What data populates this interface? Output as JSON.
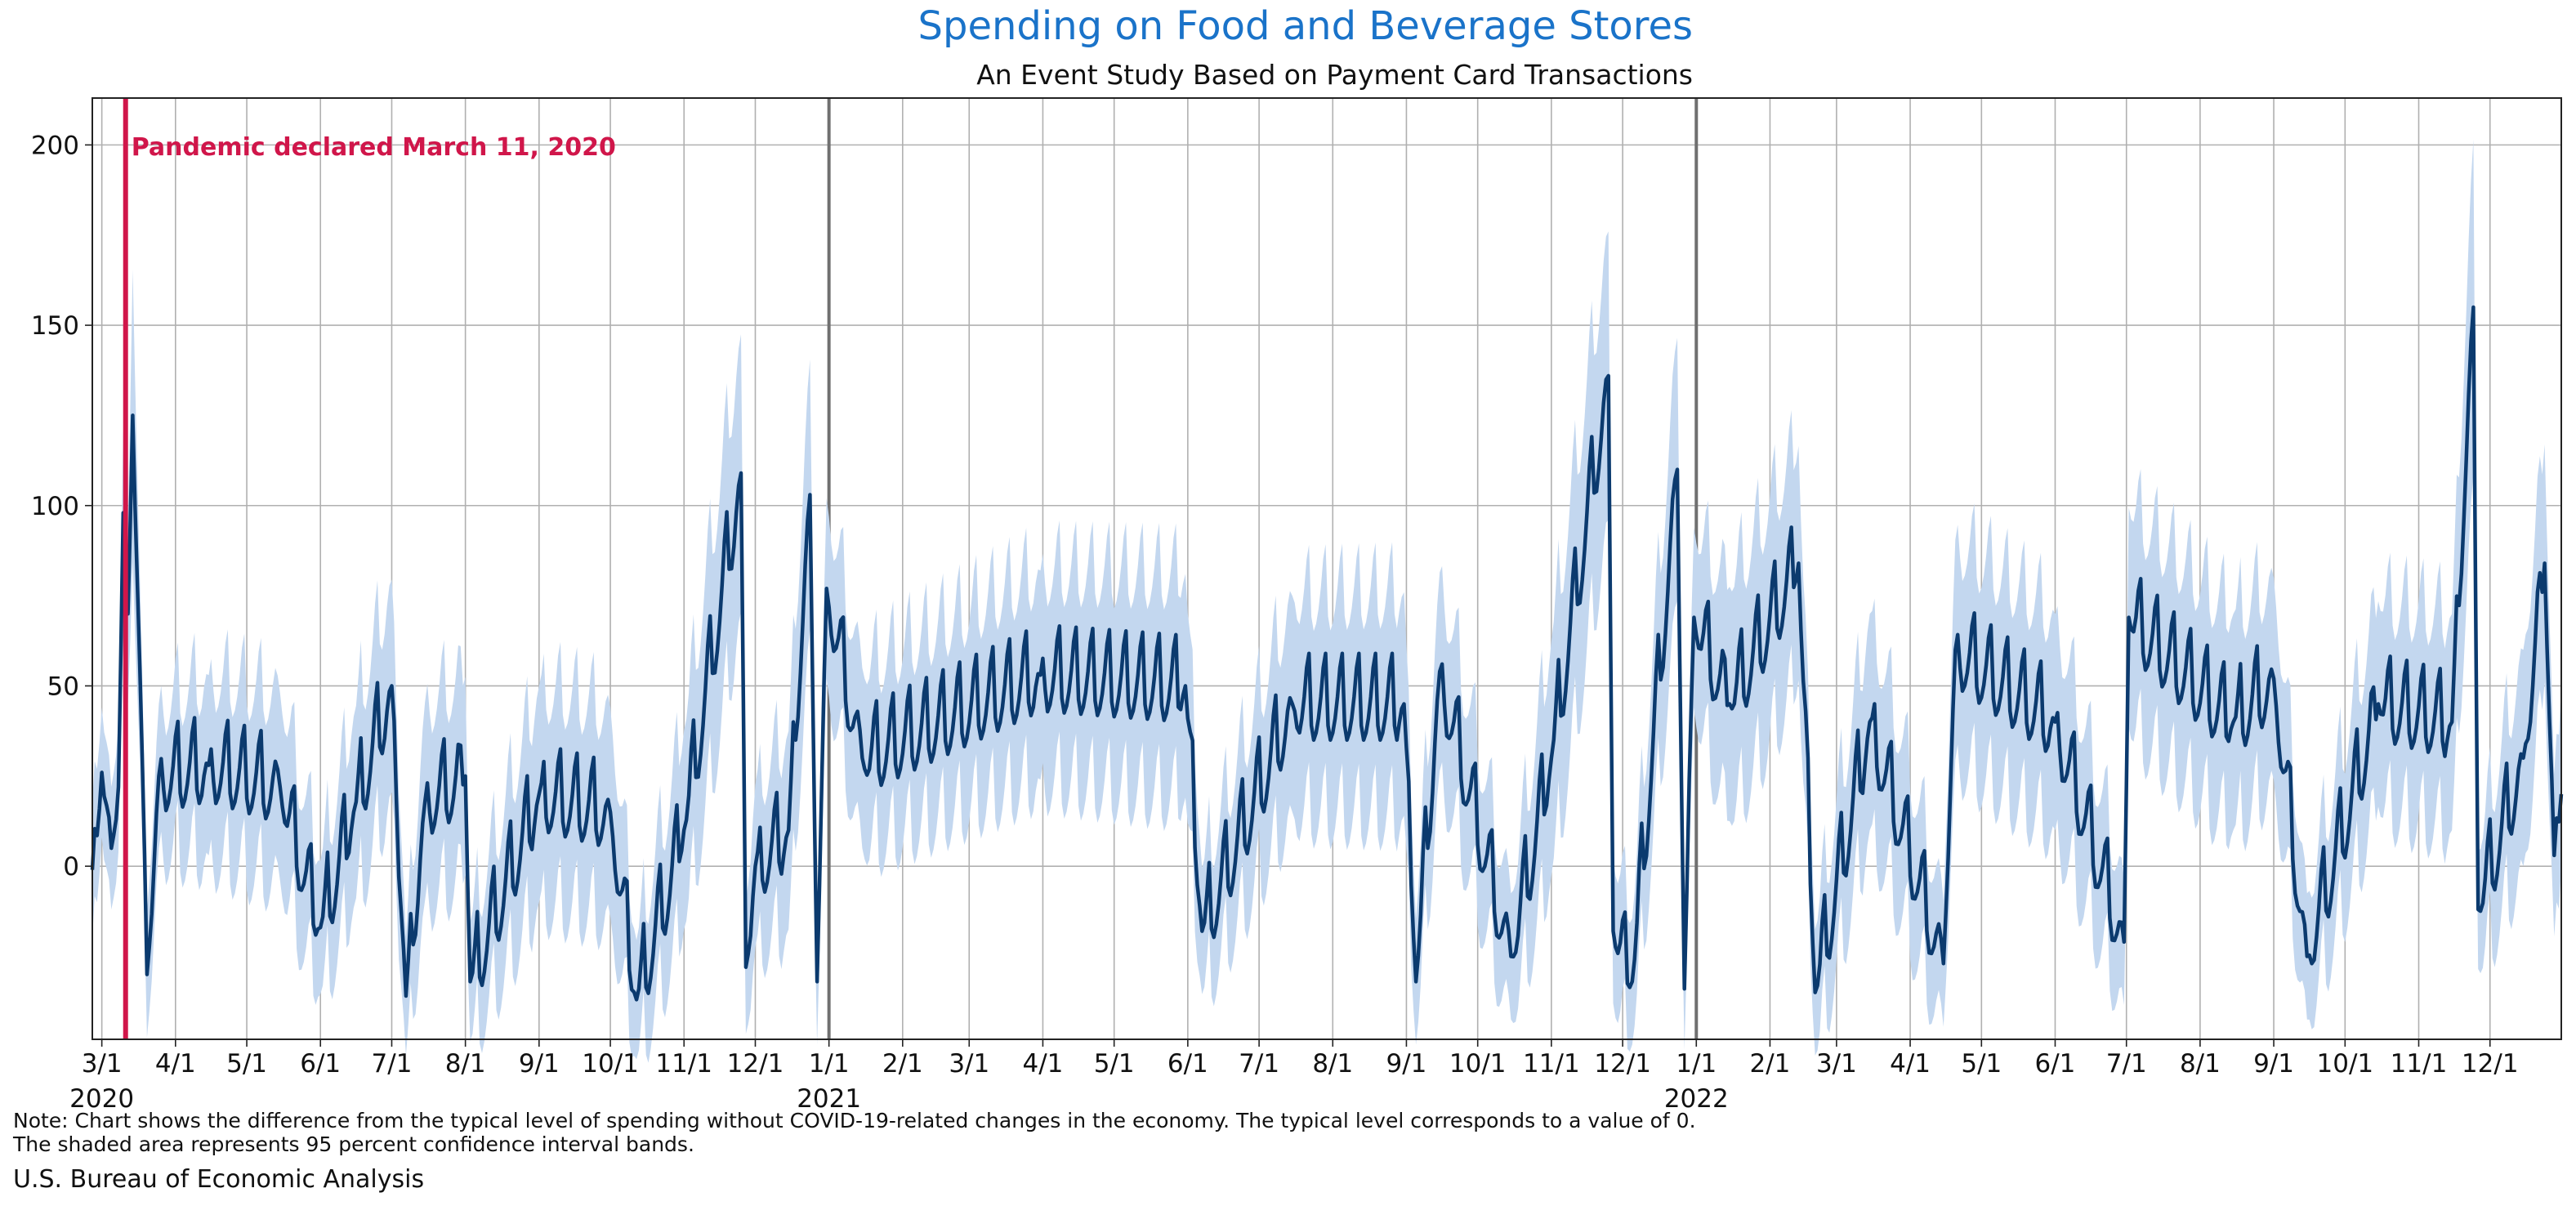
{
  "chart_data": {
    "type": "area",
    "title": "Spending on Food and Beverage Stores",
    "subtitle": "An Event Study Based on Payment Card Transactions",
    "xlabel": "",
    "ylabel": "",
    "xlim": [
      "2020-02-26",
      "2022-12-31"
    ],
    "ylim": [
      -48,
      213
    ],
    "y_ticks": [
      0,
      50,
      100,
      150,
      200
    ],
    "x_ticks": [
      {
        "date": "2020-03-01",
        "label": "3/1",
        "year": "2020"
      },
      {
        "date": "2020-04-01",
        "label": "4/1"
      },
      {
        "date": "2020-05-01",
        "label": "5/1"
      },
      {
        "date": "2020-06-01",
        "label": "6/1"
      },
      {
        "date": "2020-07-01",
        "label": "7/1"
      },
      {
        "date": "2020-08-01",
        "label": "8/1"
      },
      {
        "date": "2020-09-01",
        "label": "9/1"
      },
      {
        "date": "2020-10-01",
        "label": "10/1"
      },
      {
        "date": "2020-11-01",
        "label": "11/1"
      },
      {
        "date": "2020-12-01",
        "label": "12/1"
      },
      {
        "date": "2021-01-01",
        "label": "1/1",
        "year": "2021"
      },
      {
        "date": "2021-02-01",
        "label": "2/1"
      },
      {
        "date": "2021-03-01",
        "label": "3/1"
      },
      {
        "date": "2021-04-01",
        "label": "4/1"
      },
      {
        "date": "2021-05-01",
        "label": "5/1"
      },
      {
        "date": "2021-06-01",
        "label": "6/1"
      },
      {
        "date": "2021-07-01",
        "label": "7/1"
      },
      {
        "date": "2021-08-01",
        "label": "8/1"
      },
      {
        "date": "2021-09-01",
        "label": "9/1"
      },
      {
        "date": "2021-10-01",
        "label": "10/1"
      },
      {
        "date": "2021-11-01",
        "label": "11/1"
      },
      {
        "date": "2021-12-01",
        "label": "12/1"
      },
      {
        "date": "2022-01-01",
        "label": "1/1",
        "year": "2022"
      },
      {
        "date": "2022-02-01",
        "label": "2/1"
      },
      {
        "date": "2022-03-01",
        "label": "3/1"
      },
      {
        "date": "2022-04-01",
        "label": "4/1"
      },
      {
        "date": "2022-05-01",
        "label": "5/1"
      },
      {
        "date": "2022-06-01",
        "label": "6/1"
      },
      {
        "date": "2022-07-01",
        "label": "7/1"
      },
      {
        "date": "2022-08-01",
        "label": "8/1"
      },
      {
        "date": "2022-09-01",
        "label": "9/1"
      },
      {
        "date": "2022-10-01",
        "label": "10/1"
      },
      {
        "date": "2022-11-01",
        "label": "11/1"
      },
      {
        "date": "2022-12-01",
        "label": "12/1"
      }
    ],
    "grid": true,
    "year_separators": [
      "2021-01-01",
      "2022-01-01"
    ],
    "event_line": {
      "date": "2020-03-11",
      "label": "Pandemic declared March 11, 2020",
      "color": "#d0164a"
    },
    "series_color": "#0b3a6e",
    "band_color": "#c3d7ef",
    "series": [
      {
        "values_note": "Daily estimates sampled at key points; daily weekly oscillation between points is reproduced in the drawing.",
        "points": [
          [
            "2020-02-26",
            -1,
            -20,
            18
          ],
          [
            "2020-03-01",
            26,
            8,
            44
          ],
          [
            "2020-03-05",
            5,
            -12,
            22
          ],
          [
            "2020-03-08",
            22,
            4,
            40
          ],
          [
            "2020-03-10",
            98,
            75,
            120
          ],
          [
            "2020-03-12",
            70,
            45,
            95
          ],
          [
            "2020-03-14",
            125,
            95,
            176
          ],
          [
            "2020-03-17",
            55,
            30,
            80
          ],
          [
            "2020-03-20",
            -30,
            -45,
            -10
          ],
          [
            "2020-03-25",
            25,
            5,
            45
          ],
          [
            "2020-04-15",
            28,
            8,
            58
          ],
          [
            "2020-05-15",
            22,
            0,
            52
          ],
          [
            "2020-06-01",
            -17,
            -32,
            5
          ],
          [
            "2020-06-15",
            15,
            -5,
            48
          ],
          [
            "2020-07-01",
            50,
            25,
            84
          ],
          [
            "2020-07-07",
            -36,
            -48,
            -15
          ],
          [
            "2020-07-15",
            18,
            -5,
            50
          ],
          [
            "2020-08-01",
            25,
            0,
            55
          ],
          [
            "2020-08-03",
            -32,
            -45,
            -12
          ],
          [
            "2020-09-01",
            20,
            -5,
            55
          ],
          [
            "2020-10-01",
            15,
            -8,
            50
          ],
          [
            "2020-10-12",
            -37,
            -48,
            -15
          ],
          [
            "2020-11-01",
            10,
            -10,
            45
          ],
          [
            "2020-11-25",
            109,
            80,
            157
          ],
          [
            "2020-11-27",
            -28,
            -42,
            -5
          ],
          [
            "2020-12-01",
            0,
            -15,
            30
          ],
          [
            "2020-12-15",
            10,
            -10,
            45
          ],
          [
            "2020-12-24",
            103,
            75,
            150
          ],
          [
            "2020-12-27",
            -32,
            -45,
            -10
          ],
          [
            "2020-12-31",
            77,
            50,
            100
          ],
          [
            "2021-01-15",
            30,
            10,
            60
          ],
          [
            "2021-03-31",
            53,
            30,
            88
          ],
          [
            "2021-05-31",
            50,
            25,
            87
          ],
          [
            "2021-06-07",
            -18,
            -30,
            5
          ],
          [
            "2021-07-15",
            45,
            20,
            80
          ],
          [
            "2021-08-31",
            45,
            20,
            82
          ],
          [
            "2021-09-05",
            -32,
            -45,
            -10
          ],
          [
            "2021-09-15",
            54,
            30,
            85
          ],
          [
            "2021-10-15",
            -25,
            -40,
            -5
          ],
          [
            "2021-11-01",
            30,
            5,
            70
          ],
          [
            "2021-11-25",
            136,
            110,
            190
          ],
          [
            "2021-11-27",
            -18,
            -35,
            5
          ],
          [
            "2021-12-05",
            -32,
            -45,
            -10
          ],
          [
            "2021-12-24",
            110,
            85,
            158
          ],
          [
            "2021-12-27",
            -34,
            -46,
            -12
          ],
          [
            "2021-12-31",
            69,
            45,
            95
          ],
          [
            "2022-01-15",
            45,
            20,
            85
          ],
          [
            "2022-02-13",
            84,
            60,
            125
          ],
          [
            "2022-02-20",
            -35,
            -47,
            -12
          ],
          [
            "2022-03-15",
            40,
            20,
            80
          ],
          [
            "2022-04-15",
            -27,
            -40,
            -5
          ],
          [
            "2022-04-20",
            60,
            35,
            96
          ],
          [
            "2022-06-01",
            40,
            20,
            80
          ],
          [
            "2022-06-30",
            -21,
            -35,
            0
          ],
          [
            "2022-07-02",
            69,
            45,
            106
          ],
          [
            "2022-08-15",
            40,
            20,
            80
          ],
          [
            "2022-09-01",
            52,
            30,
            86
          ],
          [
            "2022-09-15",
            -25,
            -40,
            -5
          ],
          [
            "2022-10-15",
            45,
            25,
            82
          ],
          [
            "2022-11-15",
            40,
            20,
            80
          ],
          [
            "2022-11-24",
            155,
            120,
            213
          ],
          [
            "2022-11-26",
            -12,
            -28,
            5
          ],
          [
            "2022-12-15",
            30,
            10,
            70
          ],
          [
            "2022-12-24",
            84,
            60,
            126
          ],
          [
            "2022-12-28",
            3,
            -15,
            30
          ],
          [
            "2022-12-31",
            20,
            0,
            50
          ]
        ]
      }
    ]
  },
  "notes": [
    "Note: Chart shows the difference from the typical level of spending without COVID-19-related changes in the economy. The typical level corresponds to a value of 0.",
    "The shaded area represents 95 percent confidence interval bands."
  ],
  "source": "U.S. Bureau of Economic Analysis"
}
